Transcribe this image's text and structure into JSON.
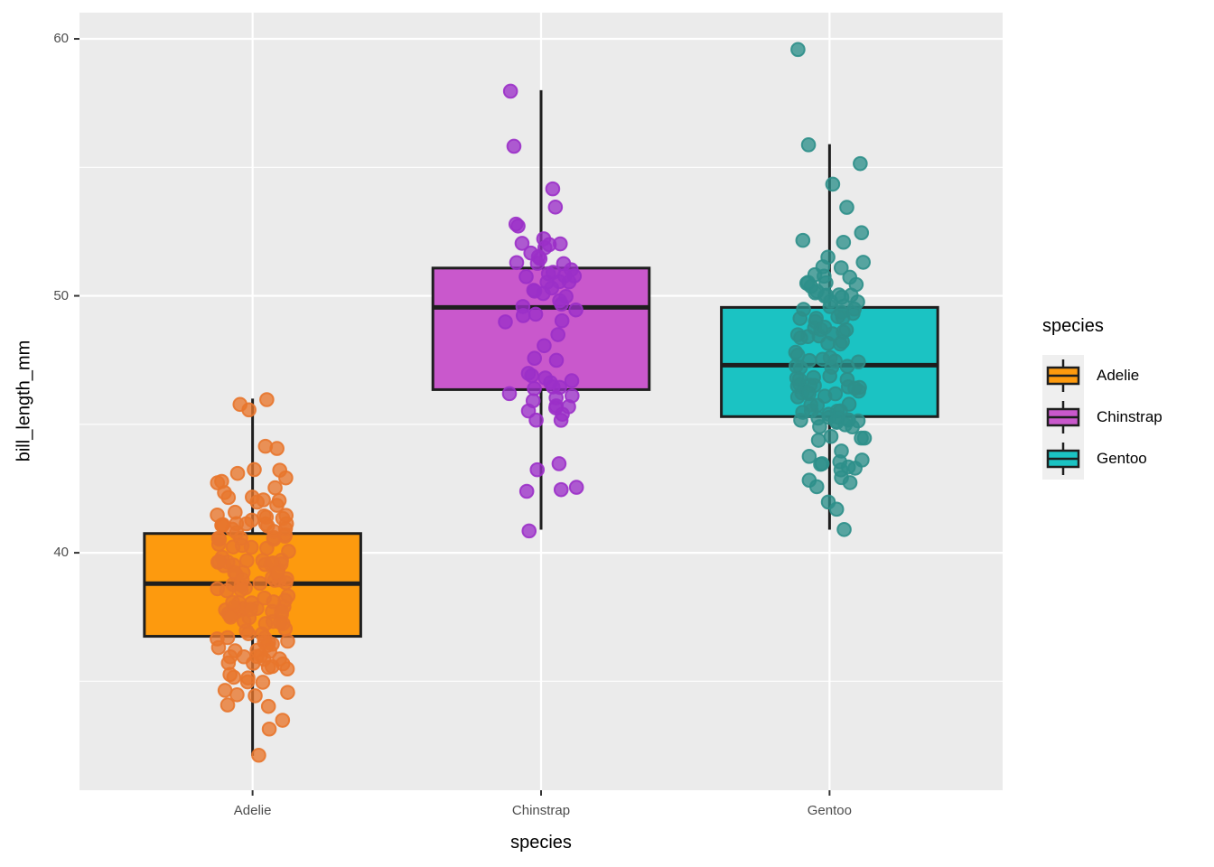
{
  "chart_data": {
    "type": "boxplot-jitter",
    "title": "",
    "xlabel": "species",
    "ylabel": "bill_length_mm",
    "x_axis": {
      "tick_labels": [
        "Adelie",
        "Chinstrap",
        "Gentoo"
      ]
    },
    "y_axis": {
      "tick_labels": [
        "40",
        "50",
        "60"
      ],
      "ticks": [
        40,
        50,
        60
      ],
      "minor_gridlines": [
        35,
        45,
        55
      ],
      "ylim": [
        30.76,
        61.02
      ]
    },
    "grid": "on",
    "legend": {
      "title": "species",
      "position": "right",
      "entries": [
        "Adelie",
        "Chinstrap",
        "Gentoo"
      ]
    },
    "categories": [
      "Adelie",
      "Chinstrap",
      "Gentoo"
    ],
    "series": [
      {
        "name": "Adelie",
        "box_fill": "#FD9A0E",
        "point_color": "#E8762C",
        "box": {
          "min": 32.1,
          "q1": 36.75,
          "median": 38.8,
          "q3": 40.75,
          "max": 46.0,
          "outliers": []
        },
        "points": [
          39.1,
          39.5,
          40.3,
          36.7,
          39.3,
          38.9,
          39.2,
          34.1,
          42.0,
          37.8,
          37.8,
          41.1,
          38.6,
          34.6,
          36.6,
          38.7,
          42.5,
          34.4,
          46.0,
          37.8,
          37.7,
          35.9,
          38.2,
          38.8,
          35.3,
          40.6,
          40.5,
          37.9,
          40.5,
          39.5,
          37.2,
          39.5,
          40.9,
          36.4,
          39.2,
          38.8,
          42.2,
          37.6,
          39.8,
          36.5,
          40.8,
          36.0,
          44.1,
          37.0,
          39.6,
          41.1,
          37.5,
          36.0,
          42.3,
          39.6,
          40.1,
          35.0,
          42.0,
          34.5,
          41.4,
          39.0,
          40.6,
          36.5,
          37.6,
          35.7,
          41.3,
          37.6,
          41.1,
          36.4,
          41.6,
          35.5,
          41.1,
          35.9,
          41.8,
          33.5,
          39.7,
          39.6,
          45.8,
          35.5,
          42.8,
          40.9,
          37.2,
          36.2,
          42.1,
          34.6,
          42.9,
          36.7,
          35.1,
          37.3,
          41.3,
          36.3,
          36.9,
          38.3,
          38.9,
          35.7,
          41.1,
          34.0,
          39.6,
          36.2,
          40.8,
          38.1,
          40.3,
          33.1,
          43.2,
          35.0,
          41.0,
          37.7,
          37.8,
          37.9,
          39.7,
          38.6,
          38.2,
          38.1,
          43.2,
          38.1,
          45.6,
          39.7,
          42.2,
          39.6,
          42.7,
          38.6,
          37.3,
          35.7,
          41.1,
          36.2,
          37.7,
          40.2,
          41.4,
          35.2,
          40.6,
          38.8,
          41.5,
          39.0,
          44.1,
          38.5,
          43.1,
          36.8,
          37.5,
          38.1,
          41.1,
          35.6,
          40.2,
          37.0,
          39.7,
          40.2,
          40.6,
          32.1,
          40.7,
          37.3,
          39.0,
          39.2,
          36.6,
          36.0,
          37.8,
          36.0,
          41.5
        ]
      },
      {
        "name": "Chinstrap",
        "box_fill": "#C958CC",
        "point_color": "#9B30C8",
        "box": {
          "min": 40.9,
          "q1": 46.35,
          "median": 49.55,
          "q3": 51.08,
          "max": 58.0,
          "outliers": []
        },
        "points": [
          46.5,
          50.0,
          51.3,
          45.4,
          52.7,
          45.2,
          46.1,
          51.3,
          46.0,
          51.3,
          46.6,
          51.7,
          47.0,
          52.0,
          45.9,
          50.5,
          50.3,
          58.0,
          46.4,
          49.2,
          42.4,
          48.5,
          43.2,
          50.6,
          46.7,
          52.0,
          50.5,
          49.5,
          46.4,
          52.8,
          40.9,
          54.2,
          42.5,
          51.0,
          49.7,
          47.5,
          47.6,
          52.0,
          46.9,
          53.5,
          49.0,
          46.2,
          50.9,
          45.5,
          50.9,
          50.8,
          50.1,
          49.0,
          51.5,
          49.8,
          48.1,
          51.4,
          45.7,
          50.7,
          42.5,
          52.2,
          45.2,
          49.3,
          50.2,
          45.6,
          51.9,
          46.8,
          45.7,
          55.8,
          43.5,
          49.6,
          50.8,
          50.2
        ]
      },
      {
        "name": "Gentoo",
        "box_fill": "#1BC3C3",
        "point_color": "#2D8F8A",
        "box": {
          "min": 40.9,
          "q1": 45.3,
          "median": 47.3,
          "q3": 49.55,
          "max": 55.9,
          "outliers": [
            59.6
          ]
        },
        "points": [
          46.1,
          50.0,
          48.7,
          50.0,
          47.6,
          46.5,
          45.4,
          46.7,
          43.3,
          46.8,
          40.9,
          49.0,
          45.5,
          48.4,
          45.8,
          49.3,
          42.0,
          49.2,
          46.2,
          48.7,
          50.2,
          45.1,
          46.5,
          46.3,
          42.9,
          46.1,
          44.5,
          47.8,
          48.2,
          50.0,
          47.3,
          42.8,
          45.1,
          59.6,
          49.1,
          48.4,
          42.6,
          44.4,
          44.0,
          48.7,
          42.7,
          49.6,
          45.3,
          49.6,
          50.5,
          43.6,
          45.5,
          50.5,
          44.9,
          45.2,
          46.6,
          48.5,
          45.1,
          50.1,
          46.5,
          45.0,
          43.8,
          45.5,
          43.2,
          50.4,
          45.3,
          46.2,
          45.7,
          54.3,
          45.8,
          49.8,
          46.2,
          49.5,
          43.5,
          50.7,
          47.7,
          46.4,
          48.2,
          46.5,
          46.4,
          48.6,
          47.5,
          51.1,
          45.2,
          45.2,
          49.1,
          52.5,
          47.4,
          50.0,
          44.9,
          50.8,
          43.4,
          51.3,
          47.5,
          52.1,
          47.5,
          52.2,
          45.5,
          49.5,
          44.5,
          50.8,
          49.4,
          46.9,
          48.4,
          51.1,
          48.5,
          55.9,
          47.2,
          49.1,
          47.3,
          46.8,
          41.7,
          53.4,
          43.3,
          48.1,
          50.5,
          49.8,
          43.5,
          51.5,
          46.2,
          55.1,
          44.5,
          48.8,
          47.2,
          46.8,
          50.4,
          45.2,
          49.9
        ]
      }
    ],
    "colors": {
      "panel_background": "#EBEBEB",
      "gridline": "#FFFFFF",
      "box_outline": "#1E1E1E",
      "tick_mark": "#333333",
      "tick_text": "#4D4D4D",
      "axis_title_text": "#000000",
      "legend_key_background": "#EFEFEF"
    }
  }
}
